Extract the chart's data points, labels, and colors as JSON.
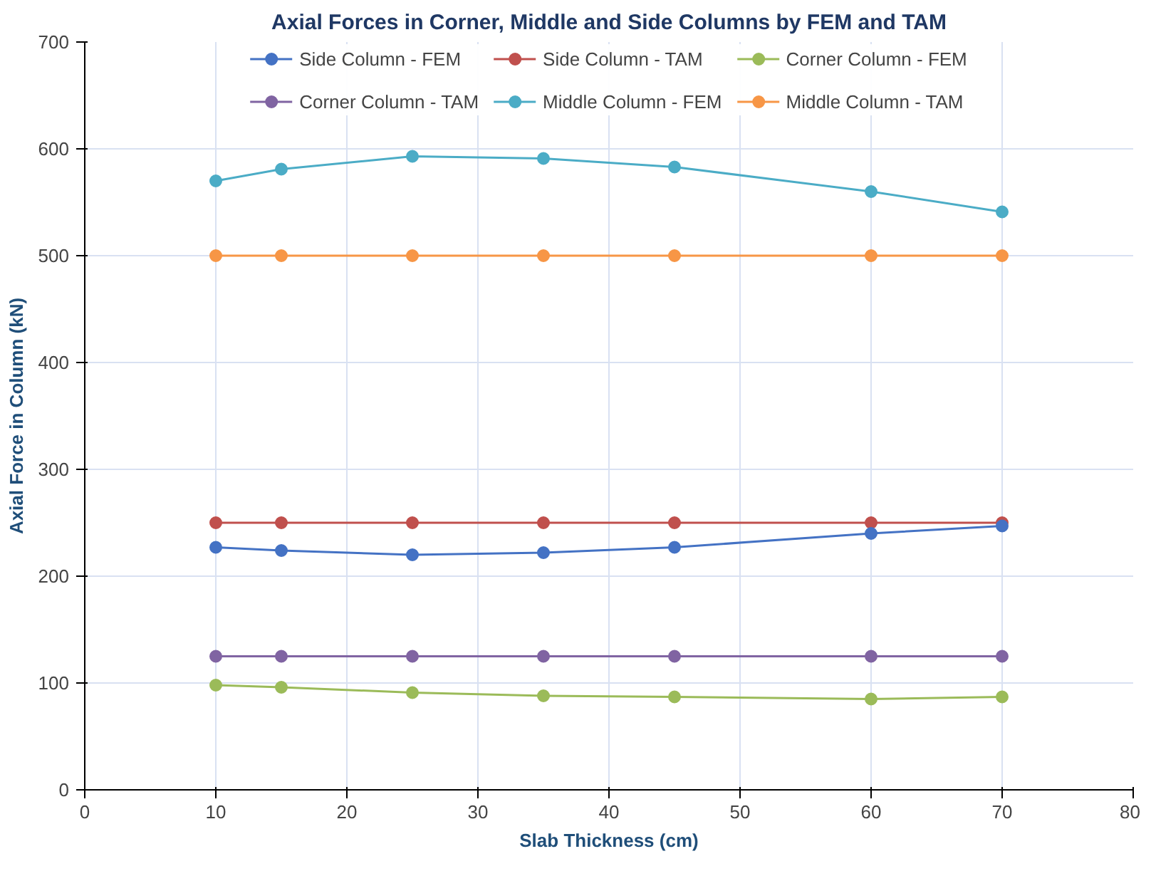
{
  "chart_data": {
    "type": "line",
    "title": "Axial Forces in Corner, Middle and Side Columns by FEM and TAM",
    "xlabel": "Slab Thickness (cm)",
    "ylabel": "Axial Force in Column (kN)",
    "x": [
      10,
      15,
      25,
      35,
      45,
      60,
      70
    ],
    "series": [
      {
        "name": "Side Column - FEM",
        "color": "#4472c4",
        "values": [
          227,
          224,
          220,
          222,
          227,
          240,
          247
        ]
      },
      {
        "name": "Side Column - TAM",
        "color": "#c0504d",
        "values": [
          250,
          250,
          250,
          250,
          250,
          250,
          250
        ]
      },
      {
        "name": "Corner Column - FEM",
        "color": "#9bbb59",
        "values": [
          98,
          96,
          91,
          88,
          87,
          85,
          87
        ]
      },
      {
        "name": "Corner Column - TAM",
        "color": "#8064a2",
        "values": [
          125,
          125,
          125,
          125,
          125,
          125,
          125
        ]
      },
      {
        "name": "Middle Column - FEM",
        "color": "#4bacc6",
        "values": [
          570,
          581,
          593,
          591,
          583,
          560,
          541
        ]
      },
      {
        "name": "Middle Column - TAM",
        "color": "#f79646",
        "values": [
          500,
          500,
          500,
          500,
          500,
          500,
          500
        ]
      }
    ],
    "xlim": [
      0,
      80
    ],
    "xticks": [
      0,
      10,
      20,
      30,
      40,
      50,
      60,
      70,
      80
    ],
    "ylim": [
      0,
      700
    ],
    "yticks": [
      0,
      100,
      200,
      300,
      400,
      500,
      600,
      700
    ],
    "grid": true,
    "legend": "top",
    "marker": "circle",
    "line_style": "solid"
  }
}
